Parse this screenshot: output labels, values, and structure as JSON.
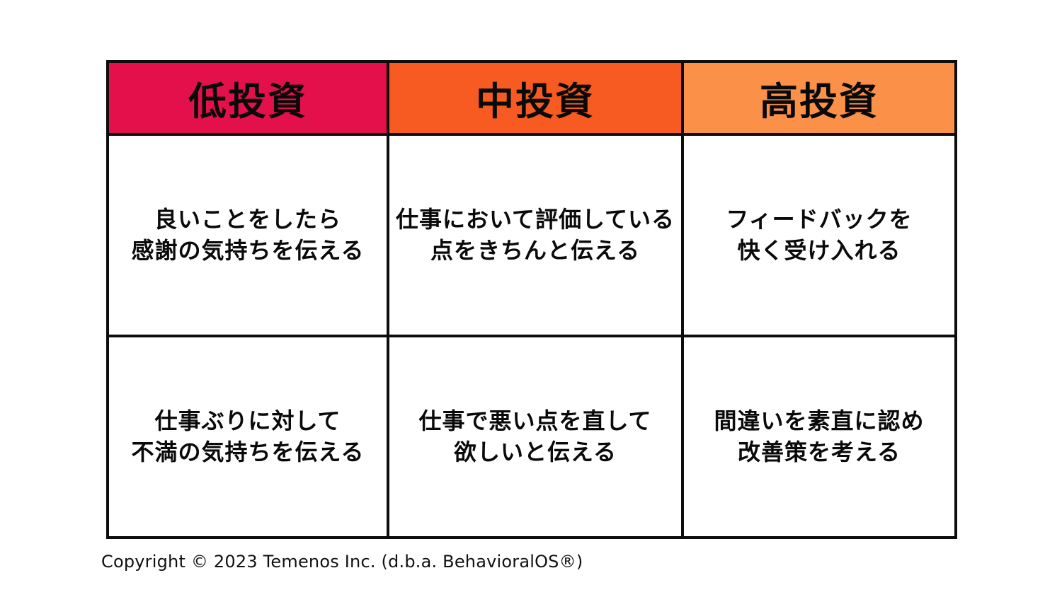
{
  "table": {
    "columns": [
      {
        "label": "低投資",
        "color": "#E3104B"
      },
      {
        "label": "中投資",
        "color": "#F85B21"
      },
      {
        "label": "高投資",
        "color": "#FB9149"
      }
    ],
    "rows": [
      [
        "良いことをしたら\n感謝の気持ちを伝える",
        "仕事において評価している\n点をきちんと伝える",
        "フィードバックを\n快く受け入れる"
      ],
      [
        "仕事ぶりに対して\n不満の気持ちを伝える",
        "仕事で悪い点を直して\n欲しいと伝える",
        "間違いを素直に認め\n改善策を考える"
      ]
    ]
  },
  "footer": {
    "copyright": "Copyright © 2023 Temenos Inc. (d.b.a. BehavioralOS®)"
  },
  "colors": {
    "border": "#0d0d0d",
    "background": "#ffffff",
    "text": "#0a0a0a"
  }
}
